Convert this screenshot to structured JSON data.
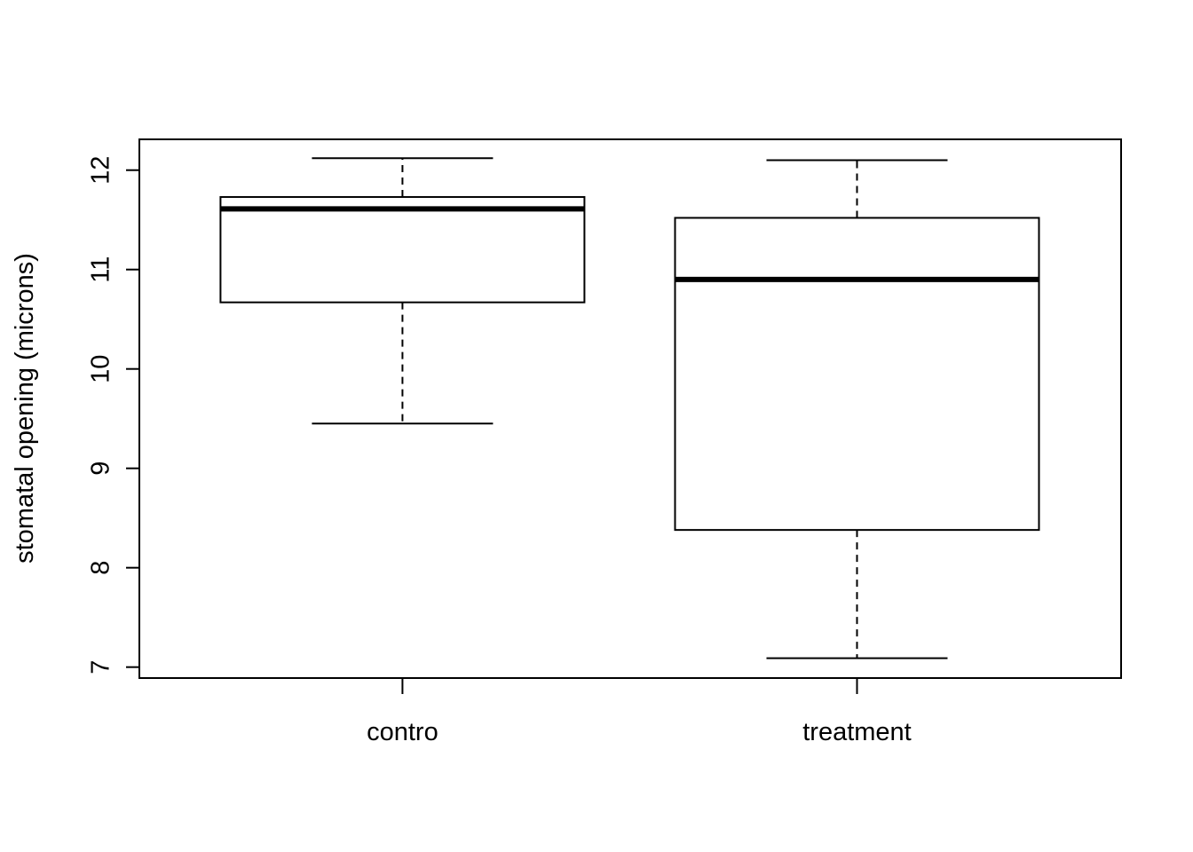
{
  "chart_data": {
    "type": "boxplot",
    "title": "",
    "xlabel": "",
    "ylabel": "stomatal opening (microns)",
    "ylim": [
      6.89,
      12.31
    ],
    "yticks": [
      "7",
      "8",
      "9",
      "10",
      "11",
      "12"
    ],
    "grid": false,
    "categories": [
      "contro",
      "treatment"
    ],
    "boxes": [
      {
        "name": "contro",
        "whisker_low": 9.45,
        "q1": 10.67,
        "median": 11.61,
        "q3": 11.73,
        "whisker_high": 12.12
      },
      {
        "name": "treatment",
        "whisker_low": 7.09,
        "q1": 8.38,
        "median": 10.9,
        "q3": 11.52,
        "whisker_high": 12.1
      }
    ],
    "colors": {
      "stroke": "#000000",
      "box_fill": "#ffffff"
    }
  }
}
